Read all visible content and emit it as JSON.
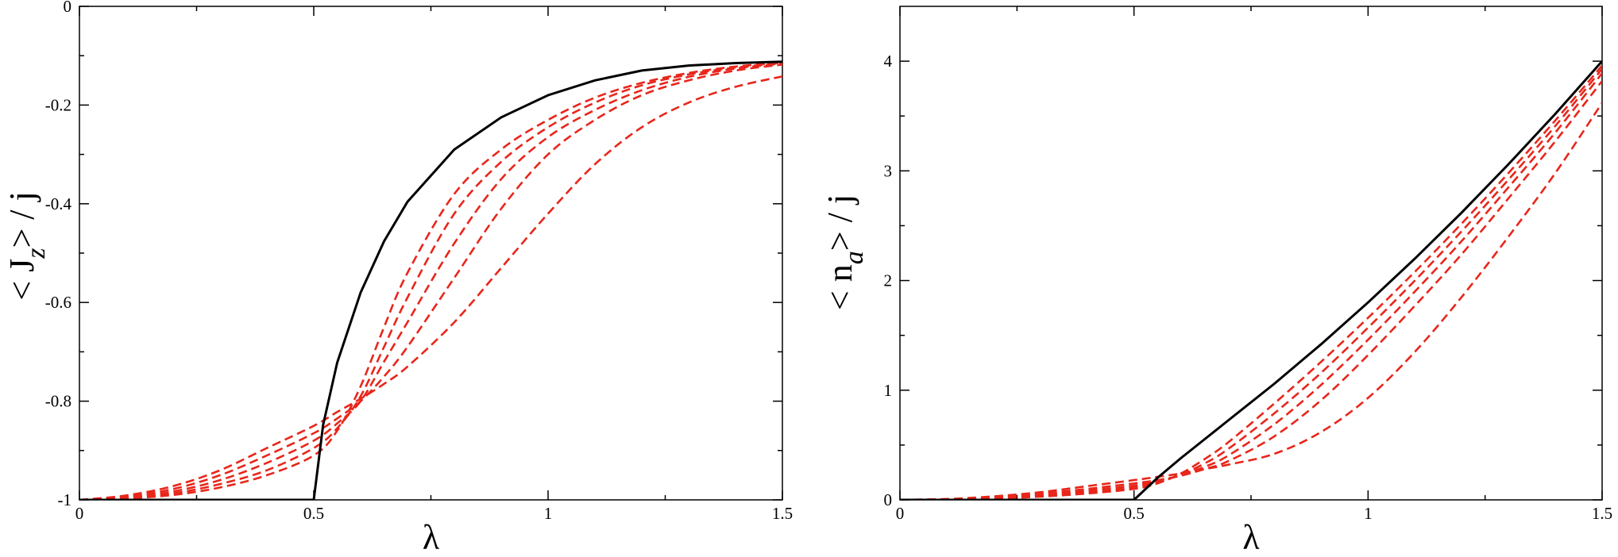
{
  "chart_data": [
    {
      "type": "line",
      "title": "",
      "xlabel": "λ",
      "ylabel": {
        "open": "<",
        "main": "J",
        "sub": "z",
        "close": ">",
        "divider": "/",
        "tail": "j"
      },
      "xlim": [
        0,
        1.5
      ],
      "ylim": [
        -1,
        0
      ],
      "xticks": [
        {
          "value": 0,
          "label": "0"
        },
        {
          "value": 0.5,
          "label": "0.5"
        },
        {
          "value": 1,
          "label": "1"
        },
        {
          "value": 1.5,
          "label": "1.5"
        }
      ],
      "yticks": [
        {
          "value": -1,
          "label": "-1"
        },
        {
          "value": -0.8,
          "label": "-0.8"
        },
        {
          "value": -0.6,
          "label": "-0.6"
        },
        {
          "value": -0.4,
          "label": "-0.4"
        },
        {
          "value": -0.2,
          "label": "-0.2"
        },
        {
          "value": 0,
          "label": "0"
        }
      ],
      "grid": false,
      "legend": "none",
      "colors": {
        "solid": "#000000",
        "dashed": "#e8261b"
      },
      "series": [
        {
          "style": "solid",
          "x": [
            0,
            0.5,
            0.52,
            0.55,
            0.6,
            0.65,
            0.7,
            0.8,
            0.9,
            1.0,
            1.1,
            1.2,
            1.3,
            1.4,
            1.5
          ],
          "y": [
            -1,
            -1,
            -0.848,
            -0.722,
            -0.58,
            -0.476,
            -0.396,
            -0.29,
            -0.225,
            -0.18,
            -0.15,
            -0.13,
            -0.12,
            -0.115,
            -0.112
          ]
        },
        {
          "style": "dashed",
          "x": [
            0,
            0.1,
            0.2,
            0.3,
            0.4,
            0.5,
            0.55,
            0.6,
            0.65,
            0.7,
            0.8,
            0.9,
            1.0,
            1.1,
            1.2,
            1.3,
            1.4,
            1.5
          ],
          "y": [
            -1,
            -0.997,
            -0.99,
            -0.975,
            -0.95,
            -0.91,
            -0.86,
            -0.77,
            -0.65,
            -0.54,
            -0.38,
            -0.29,
            -0.23,
            -0.185,
            -0.155,
            -0.135,
            -0.122,
            -0.114
          ]
        },
        {
          "style": "dashed",
          "x": [
            0,
            0.1,
            0.2,
            0.3,
            0.4,
            0.5,
            0.55,
            0.6,
            0.65,
            0.7,
            0.8,
            0.9,
            1.0,
            1.1,
            1.2,
            1.3,
            1.4,
            1.5
          ],
          "y": [
            -1,
            -0.996,
            -0.987,
            -0.968,
            -0.94,
            -0.895,
            -0.855,
            -0.79,
            -0.69,
            -0.59,
            -0.42,
            -0.315,
            -0.245,
            -0.195,
            -0.16,
            -0.138,
            -0.124,
            -0.115
          ]
        },
        {
          "style": "dashed",
          "x": [
            0,
            0.1,
            0.2,
            0.3,
            0.4,
            0.5,
            0.55,
            0.6,
            0.65,
            0.7,
            0.8,
            0.9,
            1.0,
            1.1,
            1.2,
            1.3,
            1.4,
            1.5
          ],
          "y": [
            -1,
            -0.995,
            -0.983,
            -0.96,
            -0.925,
            -0.88,
            -0.845,
            -0.8,
            -0.72,
            -0.64,
            -0.48,
            -0.35,
            -0.265,
            -0.21,
            -0.17,
            -0.143,
            -0.126,
            -0.116
          ]
        },
        {
          "style": "dashed",
          "x": [
            0,
            0.1,
            0.2,
            0.3,
            0.4,
            0.5,
            0.55,
            0.6,
            0.65,
            0.7,
            0.8,
            0.9,
            1.0,
            1.1,
            1.2,
            1.3,
            1.4,
            1.5
          ],
          "y": [
            -1,
            -0.993,
            -0.978,
            -0.95,
            -0.91,
            -0.865,
            -0.835,
            -0.8,
            -0.75,
            -0.69,
            -0.55,
            -0.41,
            -0.3,
            -0.23,
            -0.18,
            -0.15,
            -0.13,
            -0.118
          ]
        },
        {
          "style": "dashed",
          "x": [
            0,
            0.1,
            0.2,
            0.3,
            0.4,
            0.5,
            0.55,
            0.6,
            0.65,
            0.7,
            0.8,
            0.9,
            1.0,
            1.1,
            1.2,
            1.3,
            1.4,
            1.5
          ],
          "y": [
            -1,
            -0.991,
            -0.972,
            -0.94,
            -0.895,
            -0.85,
            -0.822,
            -0.795,
            -0.765,
            -0.73,
            -0.64,
            -0.53,
            -0.42,
            -0.32,
            -0.245,
            -0.195,
            -0.163,
            -0.142
          ]
        }
      ]
    },
    {
      "type": "line",
      "title": "",
      "xlabel": "λ",
      "ylabel": {
        "open": "<",
        "main": "n",
        "sub": "a",
        "close": ">",
        "divider": "/",
        "tail": "j"
      },
      "xlim": [
        0,
        1.5
      ],
      "ylim": [
        0,
        4.5
      ],
      "xticks": [
        {
          "value": 0,
          "label": "0"
        },
        {
          "value": 0.5,
          "label": "0.5"
        },
        {
          "value": 1,
          "label": "1"
        },
        {
          "value": 1.5,
          "label": "1.5"
        }
      ],
      "yticks": [
        {
          "value": 0,
          "label": "0"
        },
        {
          "value": 1,
          "label": "1"
        },
        {
          "value": 2,
          "label": "2"
        },
        {
          "value": 3,
          "label": "3"
        },
        {
          "value": 4,
          "label": "4"
        }
      ],
      "grid": false,
      "legend": "none",
      "colors": {
        "solid": "#000000",
        "dashed": "#e8261b"
      },
      "series": [
        {
          "style": "solid",
          "x": [
            0,
            0.5,
            0.55,
            0.6,
            0.7,
            0.8,
            0.9,
            1.0,
            1.1,
            1.2,
            1.3,
            1.4,
            1.5
          ],
          "y": [
            0,
            0,
            0.2,
            0.38,
            0.72,
            1.06,
            1.42,
            1.8,
            2.2,
            2.62,
            3.06,
            3.52,
            4.0
          ]
        },
        {
          "style": "dashed",
          "x": [
            0,
            0.1,
            0.2,
            0.3,
            0.4,
            0.5,
            0.55,
            0.6,
            0.65,
            0.7,
            0.8,
            0.9,
            1.0,
            1.1,
            1.2,
            1.3,
            1.4,
            1.5
          ],
          "y": [
            0,
            0.003,
            0.012,
            0.03,
            0.058,
            0.1,
            0.15,
            0.24,
            0.37,
            0.52,
            0.88,
            1.26,
            1.66,
            2.08,
            2.52,
            2.98,
            3.46,
            3.96
          ]
        },
        {
          "style": "dashed",
          "x": [
            0,
            0.1,
            0.2,
            0.3,
            0.4,
            0.5,
            0.55,
            0.6,
            0.65,
            0.7,
            0.8,
            0.9,
            1.0,
            1.1,
            1.2,
            1.3,
            1.4,
            1.5
          ],
          "y": [
            0,
            0.004,
            0.016,
            0.038,
            0.07,
            0.115,
            0.16,
            0.23,
            0.33,
            0.46,
            0.79,
            1.16,
            1.57,
            2.0,
            2.45,
            2.92,
            3.41,
            3.93
          ]
        },
        {
          "style": "dashed",
          "x": [
            0,
            0.1,
            0.2,
            0.3,
            0.4,
            0.5,
            0.55,
            0.6,
            0.65,
            0.7,
            0.8,
            0.9,
            1.0,
            1.1,
            1.2,
            1.3,
            1.4,
            1.5
          ],
          "y": [
            0,
            0.005,
            0.02,
            0.046,
            0.084,
            0.13,
            0.17,
            0.225,
            0.3,
            0.4,
            0.69,
            1.05,
            1.46,
            1.9,
            2.36,
            2.85,
            3.35,
            3.89
          ]
        },
        {
          "style": "dashed",
          "x": [
            0,
            0.1,
            0.2,
            0.3,
            0.4,
            0.5,
            0.55,
            0.6,
            0.65,
            0.7,
            0.8,
            0.9,
            1.0,
            1.1,
            1.2,
            1.3,
            1.4,
            1.5
          ],
          "y": [
            0,
            0.006,
            0.025,
            0.056,
            0.1,
            0.15,
            0.18,
            0.22,
            0.28,
            0.35,
            0.58,
            0.91,
            1.32,
            1.77,
            2.24,
            2.75,
            3.27,
            3.82
          ]
        },
        {
          "style": "dashed",
          "x": [
            0,
            0.1,
            0.2,
            0.3,
            0.4,
            0.5,
            0.55,
            0.6,
            0.65,
            0.7,
            0.8,
            0.9,
            1.0,
            1.1,
            1.2,
            1.3,
            1.4,
            1.5
          ],
          "y": [
            0,
            0.008,
            0.032,
            0.07,
            0.125,
            0.18,
            0.21,
            0.24,
            0.28,
            0.32,
            0.42,
            0.62,
            0.93,
            1.35,
            1.85,
            2.4,
            2.98,
            3.62
          ]
        }
      ]
    }
  ]
}
